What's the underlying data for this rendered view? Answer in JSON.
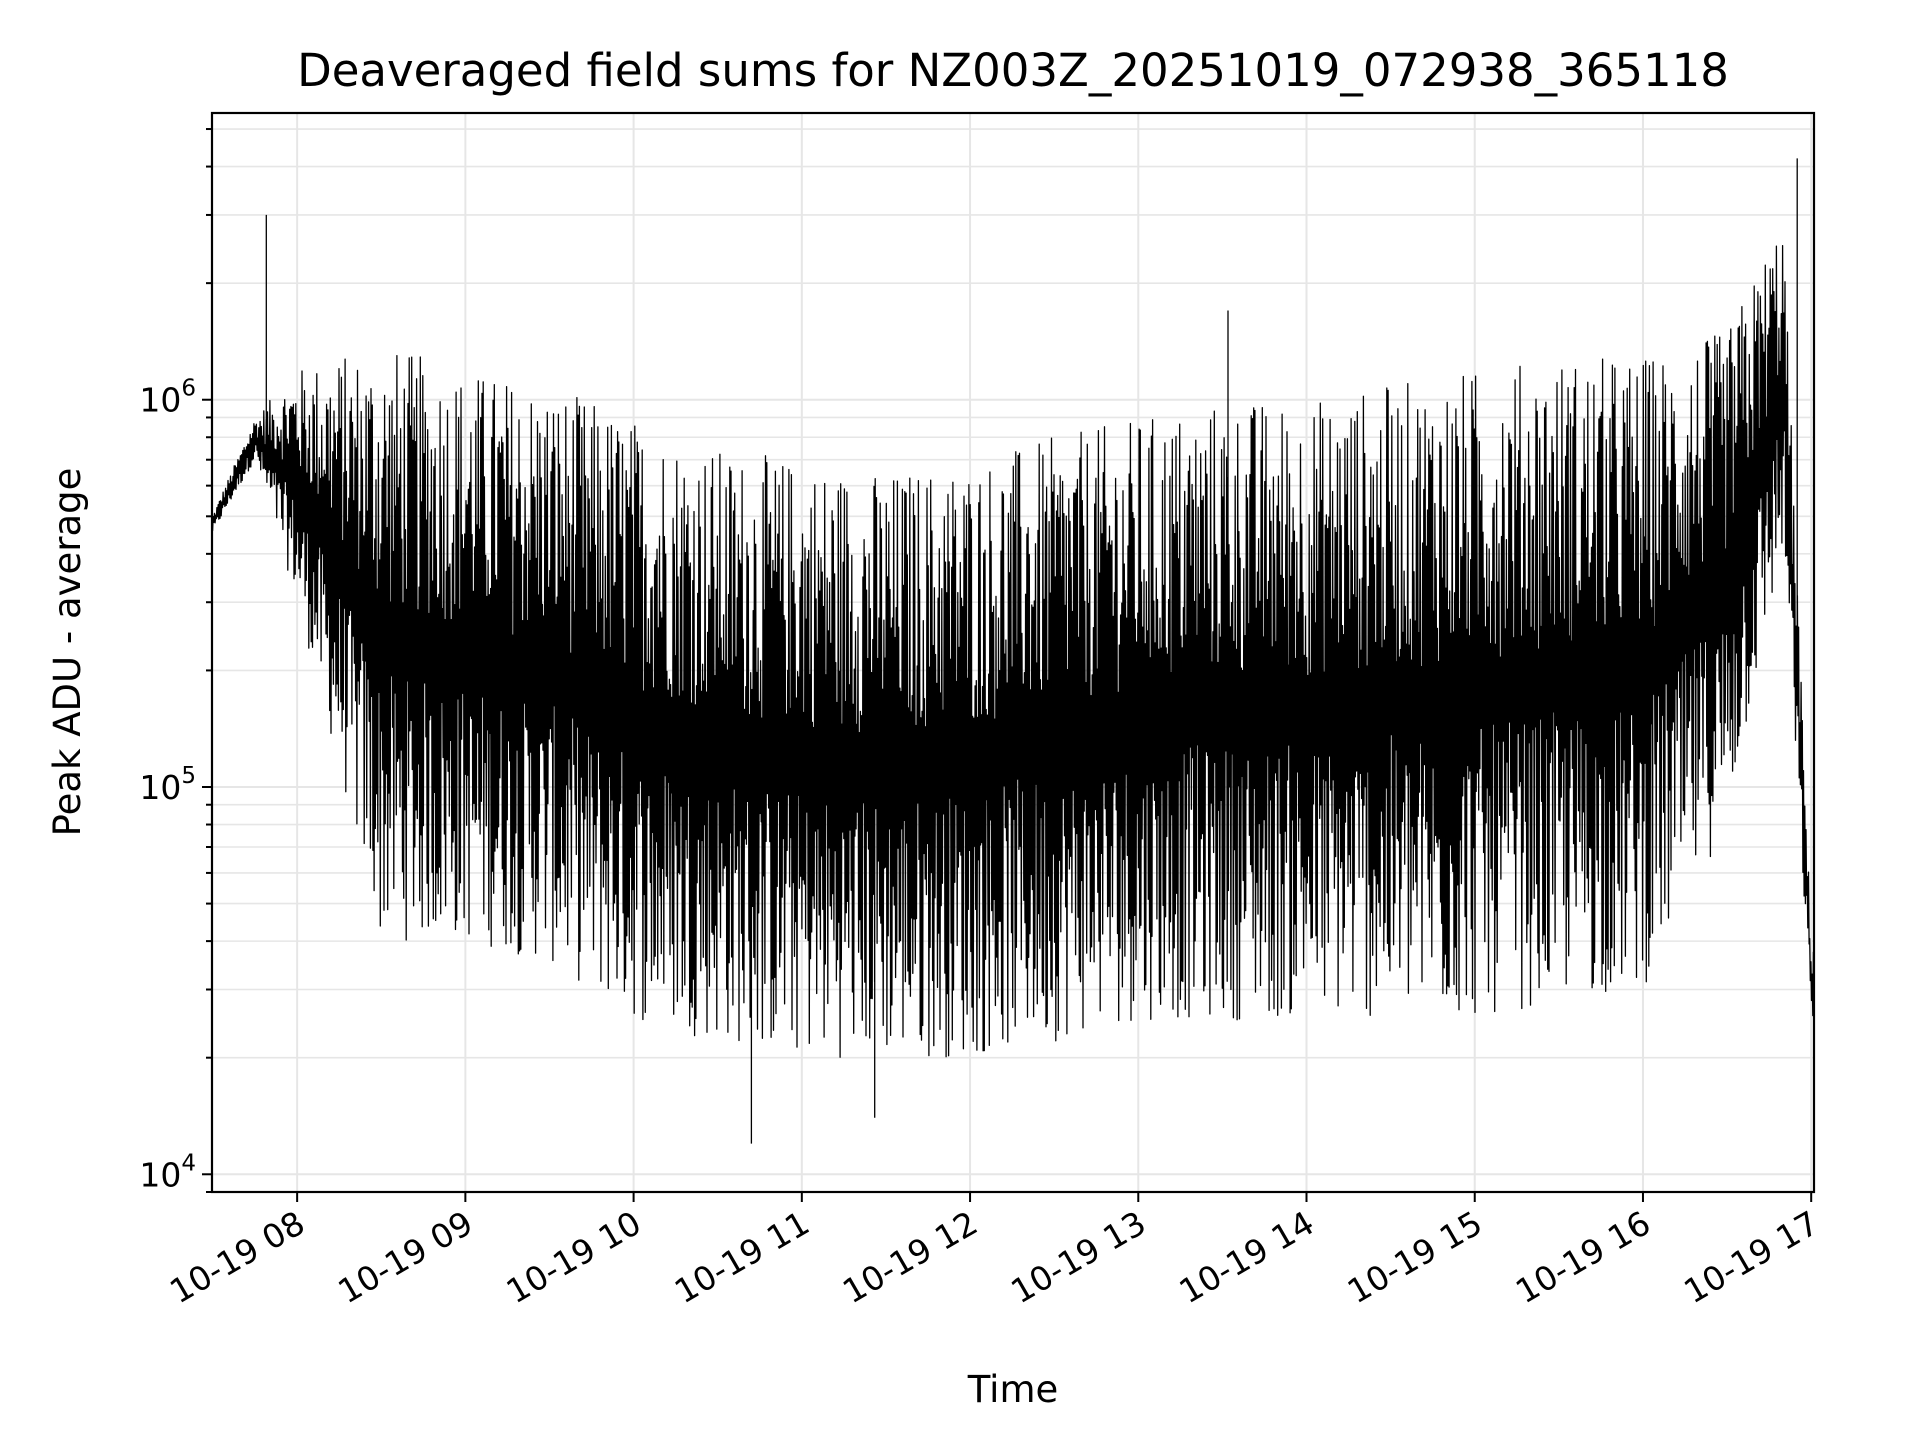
{
  "chart_data": {
    "type": "line",
    "title": "Deaveraged field sums for NZ003Z_20251019_072938_365118",
    "xlabel": "Time",
    "ylabel": "Peak ADU - average",
    "yscale": "log",
    "ylim": [
      9000,
      5500000
    ],
    "xlim": [
      "2025-10-19 07:29:38",
      "2025-10-19 17:01:00"
    ],
    "x_ticks": [
      "10-19 08",
      "10-19 09",
      "10-19 10",
      "10-19 11",
      "10-19 12",
      "10-19 13",
      "10-19 14",
      "10-19 15",
      "10-19 16",
      "10-19 17"
    ],
    "y_ticks": [
      {
        "value": 10000,
        "base": "10",
        "exp": "4"
      },
      {
        "value": 100000,
        "base": "10",
        "exp": "5"
      },
      {
        "value": 1000000,
        "base": "10",
        "exp": "6"
      }
    ],
    "grid": true,
    "line_color": "#000000",
    "series": [
      {
        "name": "",
        "x": [
          "2025-10-19 07:29:38",
          "2025-10-19 07:45",
          "2025-10-19 08:00",
          "2025-10-19 08:30",
          "2025-10-19 09:00",
          "2025-10-19 09:30",
          "2025-10-19 10:00",
          "2025-10-19 10:30",
          "2025-10-19 11:00",
          "2025-10-19 11:30",
          "2025-10-19 12:00",
          "2025-10-19 12:30",
          "2025-10-19 13:00",
          "2025-10-19 13:30",
          "2025-10-19 14:00",
          "2025-10-19 14:30",
          "2025-10-19 15:00",
          "2025-10-19 15:30",
          "2025-10-19 16:00",
          "2025-10-19 16:30",
          "2025-10-19 16:50",
          "2025-10-19 17:00"
        ],
        "upper": [
          500000,
          900000,
          1200000,
          1400000,
          1200000,
          1100000,
          900000,
          750000,
          700000,
          650000,
          700000,
          800000,
          900000,
          1000000,
          1000000,
          1100000,
          1200000,
          1300000,
          1300000,
          1500000,
          3000000,
          40000
        ],
        "lower": [
          450000,
          700000,
          300000,
          40000,
          40000,
          35000,
          25000,
          22000,
          20000,
          20000,
          20000,
          22000,
          25000,
          25000,
          25000,
          25000,
          25000,
          28000,
          30000,
          80000,
          400000,
          25000
        ],
        "spikes": [
          {
            "x": "2025-10-19 07:49",
            "y": 3000000
          },
          {
            "x": "2025-10-19 10:42",
            "y": 12000
          },
          {
            "x": "2025-10-19 11:26",
            "y": 14000
          },
          {
            "x": "2025-10-19 13:32",
            "y": 1700000
          },
          {
            "x": "2025-10-19 16:55",
            "y": 4200000
          }
        ]
      }
    ]
  }
}
